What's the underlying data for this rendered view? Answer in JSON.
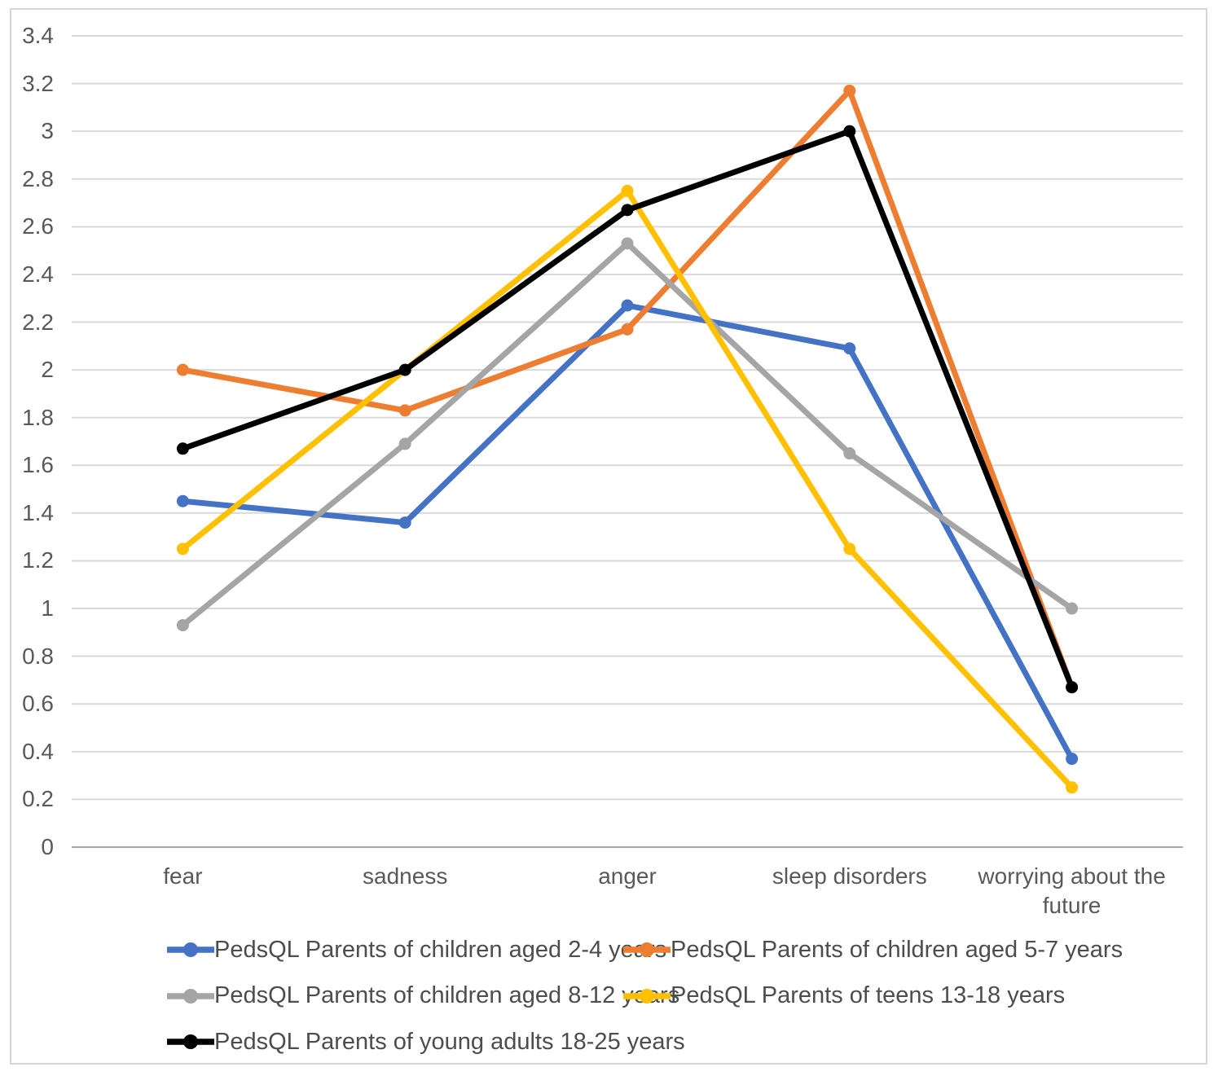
{
  "chart_data": {
    "type": "line",
    "title": "",
    "xlabel": "",
    "ylabel": "",
    "categories": [
      "fear",
      "sadness",
      "anger",
      "sleep disorders",
      "worrying about the future"
    ],
    "series": [
      {
        "name": "PedsQL Parents of children aged 2-4 years",
        "color": "#4472C4",
        "values": [
          1.45,
          1.36,
          2.27,
          2.09,
          0.37
        ]
      },
      {
        "name": "PedsQL Parents of children aged 5-7 years",
        "color": "#ED7D31",
        "values": [
          2.0,
          1.83,
          2.17,
          3.17,
          0.67
        ]
      },
      {
        "name": "PedsQL Parents of children aged 8-12 years",
        "color": "#A5A5A5",
        "values": [
          0.93,
          1.69,
          2.53,
          1.65,
          1.0
        ]
      },
      {
        "name": "PedsQL Parents of teens 13-18 years",
        "color": "#FFC000",
        "values": [
          1.25,
          2.0,
          2.75,
          1.25,
          0.25
        ]
      },
      {
        "name": "PedsQL Parents of young adults 18-25 years",
        "color": "#000000",
        "values": [
          1.67,
          2.0,
          2.67,
          3.0,
          0.67
        ]
      }
    ],
    "ylim": [
      0,
      3.4
    ],
    "y_tick_step": 0.2,
    "y_ticks": [
      "3.4",
      "3.2",
      "3",
      "2.8",
      "2.6",
      "2.4",
      "2.2",
      "2",
      "1.8",
      "1.6",
      "1.4",
      "1.2",
      "1",
      "0.8",
      "0.6",
      "0.4",
      "0.2",
      "0"
    ],
    "grid": true,
    "legend_position": "bottom"
  },
  "styles": {
    "grid_color": "#d9d9d9",
    "axis_color": "#a6a6a6",
    "tick_text_color": "#595959",
    "legend_text_color": "#4d4d4d",
    "frame_border_color": "#d6d6d6",
    "background": "#ffffff"
  }
}
